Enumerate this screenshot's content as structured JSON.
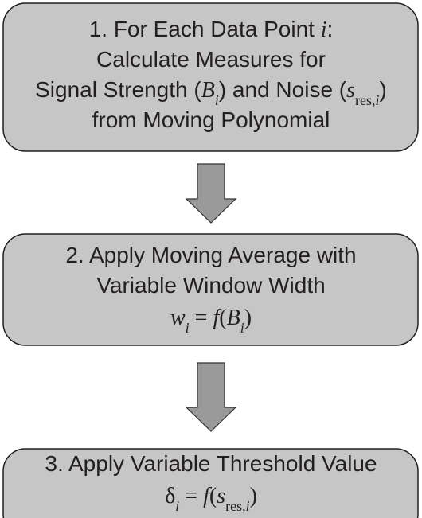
{
  "nodes": [
    {
      "lines": [
        [
          "1. For Each Data Point ",
          "i",
          ":"
        ],
        [
          "Calculate Measures for"
        ],
        [
          "Signal Strength (",
          "B",
          "i",
          ") and Noise (",
          "s",
          "res,",
          "i",
          ")"
        ],
        [
          "from Moving Polynomial"
        ]
      ]
    },
    {
      "lines": [
        [
          "2. Apply Moving Average with"
        ],
        [
          "Variable Window Width"
        ],
        [
          "w",
          "i",
          " = ",
          "f",
          "(",
          "B",
          "i",
          ")"
        ]
      ]
    },
    {
      "lines": [
        [
          "3. Apply Variable Threshold Value"
        ],
        [
          "δ",
          "i",
          " = ",
          "f",
          "(",
          "s",
          "res,",
          "i",
          ")"
        ]
      ]
    }
  ]
}
